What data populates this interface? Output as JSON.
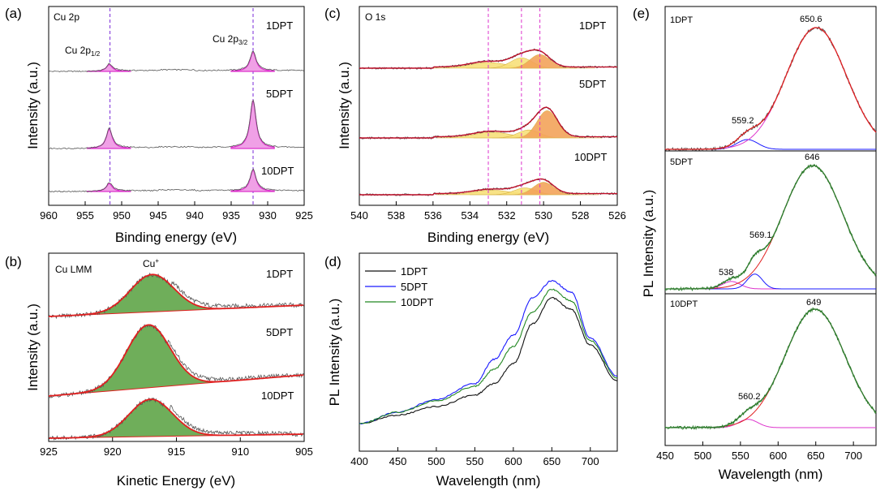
{
  "panels": {
    "a": {
      "letter": "(a)",
      "corner_label": "Cu 2p",
      "xlabel": "Binding energy (eV)",
      "ylabel": "Intensity (a.u.)",
      "xticks": [
        "960",
        "955",
        "950",
        "945",
        "940",
        "935",
        "930",
        "925"
      ],
      "peak_labels": [
        {
          "text": "Cu 2p",
          "sub": "1/2"
        },
        {
          "text": "Cu 2p",
          "sub": "3/2"
        }
      ],
      "series": [
        "1DPT",
        "5DPT",
        "10DPT"
      ]
    },
    "b": {
      "letter": "(b)",
      "corner_label": "Cu LMM",
      "peak_label": "Cu",
      "peak_label_sup": "+",
      "xlabel": "Kinetic Energy (eV)",
      "ylabel": "Intensity (a.u.)",
      "xticks": [
        "925",
        "920",
        "915",
        "910",
        "905"
      ],
      "series": [
        "1DPT",
        "5DPT",
        "10DPT"
      ]
    },
    "c": {
      "letter": "(c)",
      "corner_label": "O 1s",
      "xlabel": "Binding energy (eV)",
      "ylabel": "Intensity (a.u.)",
      "xticks": [
        "540",
        "538",
        "536",
        "534",
        "532",
        "530",
        "528",
        "526"
      ],
      "series": [
        "1DPT",
        "5DPT",
        "10DPT"
      ]
    },
    "d": {
      "letter": "(d)",
      "xlabel": "Wavelength (nm)",
      "ylabel": "PL Intensity (a.u.)",
      "xticks": [
        "400",
        "450",
        "500",
        "550",
        "600",
        "650",
        "700"
      ],
      "legend": [
        "1DPT",
        "5DPT",
        "10DPT"
      ]
    },
    "e": {
      "letter": "(e)",
      "xlabel": "Wavelength (nm)",
      "ylabel": "PL Intensity (a.u.)",
      "xticks": [
        "450",
        "500",
        "550",
        "600",
        "650",
        "700"
      ],
      "sub_labels": [
        "1DPT",
        "5DPT",
        "10DPT"
      ],
      "peak_labels": {
        "1DPT": [
          "559.2",
          "650.6"
        ],
        "5DPT": [
          "538",
          "569.1",
          "646"
        ],
        "10DPT": [
          "560.2",
          "649"
        ]
      }
    }
  },
  "colors": {
    "magenta": "#dd33cc",
    "magenta_fill": "#f0a0e6",
    "green_fill": "#6fae5a",
    "red": "#e02020",
    "blue": "#1a1aff",
    "green": "#228822",
    "gray": "#555555",
    "orange_fill": "#f3a35a",
    "yellow_fill": "#f7e07a",
    "ref_purple": "#7a2ad8"
  },
  "chart_data": [
    {
      "type": "line",
      "panel": "a",
      "xlabel": "Binding energy (eV)",
      "ylabel": "Intensity (a.u.)",
      "xlim": [
        960,
        925
      ],
      "series": [
        {
          "name": "1DPT",
          "peaks": [
            {
              "x": 951.7,
              "height": 0.3
            },
            {
              "x": 932.0,
              "height": 0.85
            }
          ]
        },
        {
          "name": "5DPT",
          "peaks": [
            {
              "x": 951.7,
              "height": 0.85
            },
            {
              "x": 932.0,
              "height": 2.1
            }
          ]
        },
        {
          "name": "10DPT",
          "peaks": [
            {
              "x": 951.7,
              "height": 0.35
            },
            {
              "x": 932.0,
              "height": 0.95
            }
          ]
        }
      ],
      "reference_lines_x": [
        951.6,
        932.0
      ]
    },
    {
      "type": "line",
      "panel": "b",
      "xlabel": "Kinetic Energy (eV)",
      "ylabel": "Intensity (a.u.)",
      "xlim": [
        925,
        905
      ],
      "series": [
        {
          "name": "1DPT",
          "peak_x": 916.9,
          "height": 1.0
        },
        {
          "name": "5DPT",
          "peak_x": 917.2,
          "height": 1.55
        },
        {
          "name": "10DPT",
          "peak_x": 917.0,
          "height": 1.0
        }
      ]
    },
    {
      "type": "line",
      "panel": "c",
      "xlabel": "Binding energy (eV)",
      "ylabel": "Intensity (a.u.)",
      "xlim": [
        540,
        526
      ],
      "series": [
        {
          "name": "1DPT",
          "components": [
            {
              "x": 530.2,
              "height": 0.6
            },
            {
              "x": 531.2,
              "height": 0.45
            },
            {
              "x": 533.0,
              "height": 0.25
            }
          ]
        },
        {
          "name": "5DPT",
          "components": [
            {
              "x": 529.8,
              "height": 1.2
            },
            {
              "x": 530.8,
              "height": 0.35
            },
            {
              "x": 532.8,
              "height": 0.25
            }
          ]
        },
        {
          "name": "10DPT",
          "components": [
            {
              "x": 530.0,
              "height": 0.55
            },
            {
              "x": 531.0,
              "height": 0.3
            },
            {
              "x": 532.8,
              "height": 0.2
            }
          ]
        }
      ],
      "reference_lines_x": [
        533.0,
        531.2,
        530.2
      ]
    },
    {
      "type": "line",
      "panel": "d",
      "xlabel": "Wavelength (nm)",
      "ylabel": "PL Intensity (a.u.)",
      "xlim": [
        400,
        735
      ],
      "x": [
        400,
        450,
        500,
        550,
        575,
        600,
        625,
        650,
        675,
        700,
        735
      ],
      "series": [
        {
          "name": "1DPT",
          "values": [
            0.0,
            0.06,
            0.12,
            0.2,
            0.28,
            0.42,
            0.7,
            0.88,
            0.8,
            0.55,
            0.3
          ]
        },
        {
          "name": "5DPT",
          "values": [
            0.0,
            0.08,
            0.17,
            0.28,
            0.45,
            0.62,
            0.88,
            1.0,
            0.92,
            0.6,
            0.33
          ]
        },
        {
          "name": "10DPT",
          "values": [
            0.0,
            0.08,
            0.16,
            0.26,
            0.38,
            0.54,
            0.78,
            0.94,
            0.86,
            0.58,
            0.32
          ]
        }
      ]
    },
    {
      "type": "line",
      "panel": "e",
      "xlabel": "Wavelength (nm)",
      "ylabel": "PL Intensity (a.u.)",
      "xlim": [
        450,
        730
      ],
      "series": [
        {
          "name": "1DPT",
          "peaks": [
            559.2,
            650.6
          ]
        },
        {
          "name": "5DPT",
          "peaks": [
            538,
            569.1,
            646
          ]
        },
        {
          "name": "10DPT",
          "peaks": [
            560.2,
            649
          ]
        }
      ]
    }
  ]
}
